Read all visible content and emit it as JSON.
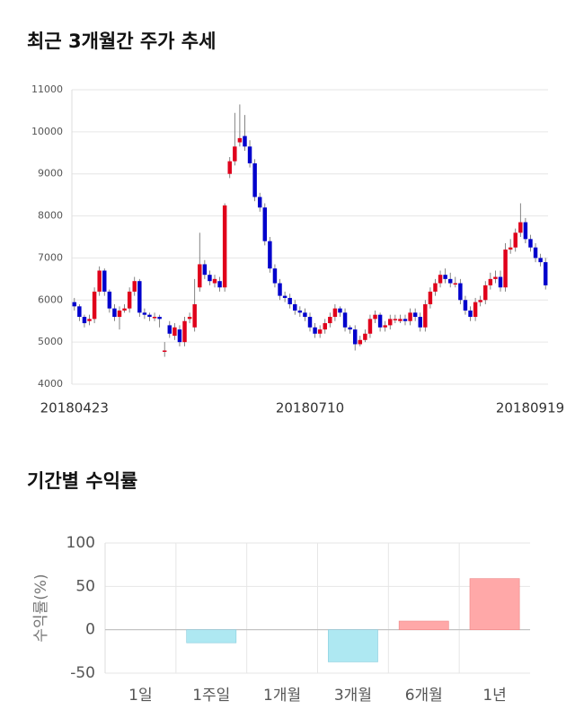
{
  "chart_data": [
    {
      "type": "candlestick",
      "title": "최근 3개월간 주가 추세",
      "categories": [
        "20180423",
        null,
        null,
        null,
        null,
        null,
        null,
        null,
        null,
        null,
        null,
        null,
        null,
        null,
        null,
        null,
        null,
        null,
        null,
        null,
        null,
        null,
        null,
        null,
        null,
        null,
        null,
        null,
        null,
        null,
        null,
        null,
        null,
        null,
        null,
        null,
        null,
        null,
        null,
        null,
        null,
        null,
        null,
        null,
        null,
        null,
        null,
        "20180710",
        null,
        null,
        null,
        null,
        null,
        null,
        null,
        null,
        null,
        null,
        null,
        null,
        null,
        null,
        null,
        null,
        null,
        null,
        null,
        null,
        null,
        null,
        null,
        null,
        null,
        null,
        null,
        null,
        null,
        null,
        null,
        null,
        null,
        null,
        null,
        null,
        null,
        null,
        null,
        null,
        null,
        null,
        null,
        null,
        null,
        null,
        "20180919"
      ],
      "open": [
        5950,
        5850,
        5600,
        5500,
        5550,
        6200,
        6700,
        6200,
        5800,
        5600,
        5750,
        5800,
        6200,
        6450,
        5700,
        5650,
        5600,
        5600,
        4800,
        5400,
        5150,
        5300,
        5000,
        5550,
        5350,
        6300,
        6850,
        6600,
        6400,
        6450,
        6300,
        9000,
        9300,
        9750,
        9900,
        9650,
        9250,
        8450,
        8200,
        7400,
        6750,
        6400,
        6100,
        6050,
        5900,
        5750,
        5700,
        5600,
        5350,
        5200,
        5300,
        5450,
        5600,
        5800,
        5700,
        5350,
        5300,
        4950,
        5050,
        5200,
        5550,
        5650,
        5350,
        5400,
        5550,
        5500,
        5550,
        5500,
        5700,
        5600,
        5350,
        5900,
        6200,
        6400,
        6600,
        6500,
        6400,
        6400,
        6000,
        5750,
        5600,
        5950,
        6000,
        6350,
        6500,
        6550,
        6300,
        7200,
        7250,
        7600,
        7850,
        7450,
        7250,
        7000,
        6900
      ],
      "high": [
        6050,
        5900,
        5650,
        5650,
        6300,
        6800,
        6750,
        6250,
        5900,
        5850,
        5900,
        6300,
        6550,
        6500,
        5800,
        5700,
        5700,
        5650,
        5000,
        5500,
        5450,
        5400,
        5600,
        5700,
        6500,
        7600,
        6950,
        6700,
        6600,
        6550,
        8300,
        9400,
        10450,
        10650,
        10400,
        9800,
        9350,
        8550,
        8300,
        7500,
        6850,
        6500,
        6200,
        6150,
        6000,
        5850,
        5800,
        5700,
        5450,
        5400,
        5550,
        5700,
        5900,
        5850,
        5800,
        5400,
        5400,
        5150,
        5300,
        5650,
        5750,
        5700,
        5500,
        5650,
        5650,
        5650,
        5650,
        5800,
        5800,
        5700,
        6000,
        6300,
        6500,
        6700,
        6750,
        6650,
        6550,
        6500,
        6100,
        5850,
        6050,
        6100,
        6450,
        6650,
        6700,
        6700,
        7350,
        7450,
        7700,
        8300,
        7950,
        7550,
        7350,
        7100,
        7000
      ],
      "low": [
        5750,
        5500,
        5350,
        5400,
        5450,
        6100,
        6100,
        5700,
        5500,
        5300,
        5700,
        5700,
        6100,
        5600,
        5550,
        5500,
        5500,
        5350,
        4650,
        5100,
        5050,
        4900,
        4900,
        5450,
        5250,
        6200,
        6500,
        6350,
        6300,
        6200,
        6200,
        8900,
        9200,
        9650,
        9550,
        9150,
        8350,
        8100,
        7300,
        6650,
        6300,
        6000,
        5950,
        5800,
        5650,
        5600,
        5500,
        5250,
        5100,
        5100,
        5200,
        5350,
        5500,
        5600,
        5250,
        5200,
        4800,
        4900,
        5000,
        5100,
        5450,
        5250,
        5250,
        5300,
        5450,
        5450,
        5400,
        5400,
        5500,
        5250,
        5250,
        5800,
        6100,
        6300,
        6400,
        6300,
        6300,
        5900,
        5650,
        5500,
        5500,
        5850,
        5900,
        6250,
        6400,
        6200,
        6200,
        7100,
        7150,
        7500,
        7350,
        7150,
        6900,
        6800,
        6250
      ],
      "close": [
        5850,
        5600,
        5450,
        5550,
        6200,
        6700,
        6200,
        5800,
        5600,
        5750,
        5800,
        6200,
        6450,
        5700,
        5650,
        5600,
        5600,
        5550,
        4800,
        5200,
        5350,
        5000,
        5500,
        5600,
        5900,
        6850,
        6600,
        6450,
        6500,
        6300,
        8250,
        9300,
        9650,
        9850,
        9650,
        9250,
        8450,
        8200,
        7400,
        6750,
        6400,
        6100,
        6050,
        5900,
        5750,
        5700,
        5600,
        5350,
        5200,
        5300,
        5450,
        5600,
        5800,
        5700,
        5350,
        5300,
        4950,
        5050,
        5200,
        5550,
        5650,
        5350,
        5400,
        5550,
        5550,
        5550,
        5500,
        5700,
        5600,
        5350,
        5900,
        6200,
        6400,
        6600,
        6500,
        6400,
        6400,
        6000,
        5750,
        5600,
        5950,
        6000,
        6350,
        6500,
        6550,
        6300,
        7200,
        7250,
        7600,
        7850,
        7450,
        7250,
        7000,
        6900,
        6350
      ],
      "up_color": "#e0001b",
      "down_color": "#0000cc",
      "ylim": [
        4000,
        11000
      ],
      "yticks": [
        4000,
        5000,
        6000,
        7000,
        8000,
        9000,
        10000,
        11000
      ],
      "grid": true
    },
    {
      "type": "bar",
      "title": "기간별 수익률",
      "y_label": "수익률(%)",
      "categories": [
        "1일",
        "1주일",
        "1개월",
        "3개월",
        "6개월",
        "1년"
      ],
      "values": [
        0,
        -15,
        0,
        -37,
        10,
        59
      ],
      "up_color": "#ffa8a8",
      "down_color": "#aee8f2",
      "ylim": [
        -50,
        100
      ],
      "yticks": [
        -50,
        0,
        50,
        100
      ],
      "grid": true
    }
  ]
}
